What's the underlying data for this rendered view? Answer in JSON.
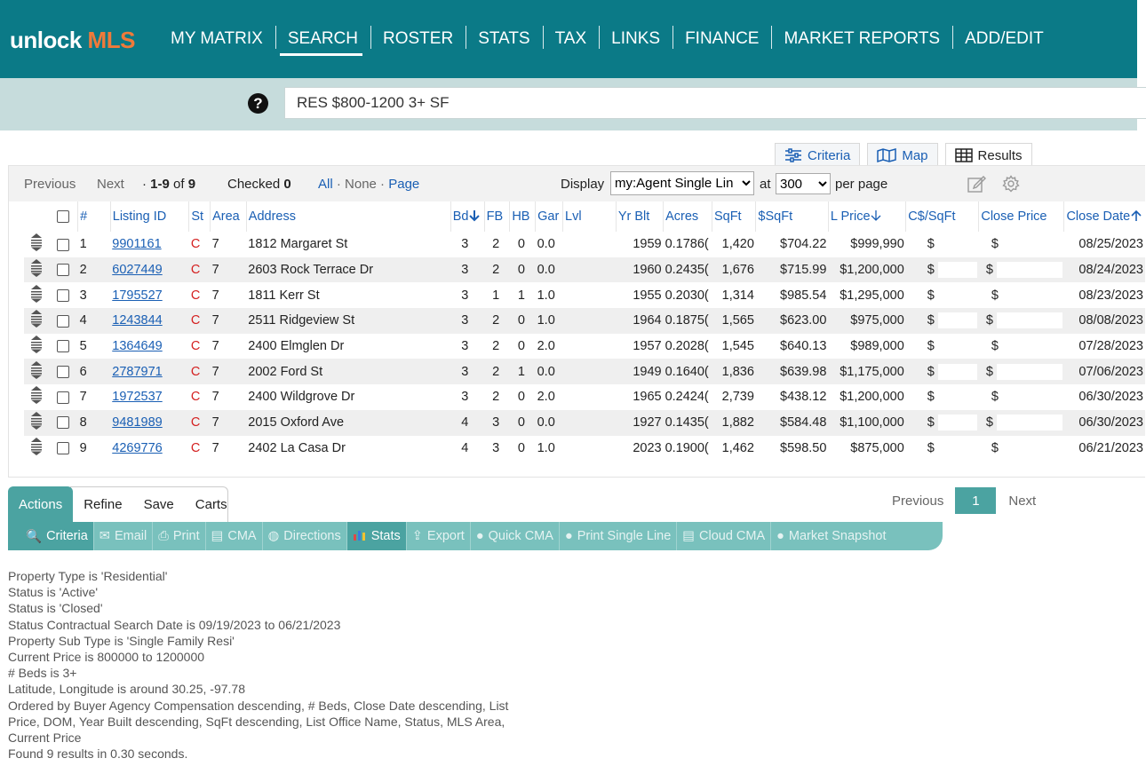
{
  "brand": {
    "part1": "unlock",
    "part2": "MLS"
  },
  "nav": [
    "MY MATRIX",
    "SEARCH",
    "ROSTER",
    "STATS",
    "TAX",
    "LINKS",
    "FINANCE",
    "MARKET REPORTS",
    "ADD/EDIT"
  ],
  "nav_active": "SEARCH",
  "search": {
    "help_glyph": "?",
    "value": "RES $800-1200 3+ SF"
  },
  "view_tabs": [
    "Criteria",
    "Map",
    "Results"
  ],
  "pager": {
    "previous": "Previous",
    "next": "Next",
    "range": "1-9",
    "of": "of",
    "total": "9",
    "checked_label": "Checked",
    "checked_count": "0",
    "all": "All",
    "none": "None",
    "page": "Page",
    "display_label": "Display",
    "display_value": "my:Agent Single Lin",
    "at_label": "at",
    "per_page_value": "300",
    "per_page_label": "per page"
  },
  "columns": [
    "#",
    "Listing ID",
    "St",
    "Area",
    "Address",
    "Bd",
    "FB",
    "HB",
    "Gar",
    "Lvl",
    "Yr Blt",
    "Acres",
    "SqFt",
    "$SqFt",
    "L Price",
    "C$/SqFt",
    "Close Price",
    "Close Date"
  ],
  "rows": [
    {
      "n": "1",
      "id": "9901161",
      "st": "C",
      "area": "7",
      "addr": "1812 Margaret St",
      "bd": "3",
      "fb": "2",
      "hb": "0",
      "gar": "0.0",
      "lvl": "",
      "yr": "1959",
      "acres": "0.1786(",
      "sqft": "1,420",
      "psf": "$704.22",
      "lp": "$999,990",
      "cpsf": "$",
      "cp": "$",
      "cd": "08/25/2023"
    },
    {
      "n": "2",
      "id": "6027449",
      "st": "C",
      "area": "7",
      "addr": "2603 Rock Terrace Dr",
      "bd": "3",
      "fb": "2",
      "hb": "0",
      "gar": "0.0",
      "lvl": "",
      "yr": "1960",
      "acres": "0.2435(",
      "sqft": "1,676",
      "psf": "$715.99",
      "lp": "$1,200,000",
      "cpsf": "$",
      "cp": "$",
      "cd": "08/24/2023"
    },
    {
      "n": "3",
      "id": "1795527",
      "st": "C",
      "area": "7",
      "addr": "1811 Kerr St",
      "bd": "3",
      "fb": "1",
      "hb": "1",
      "gar": "1.0",
      "lvl": "",
      "yr": "1955",
      "acres": "0.2030(",
      "sqft": "1,314",
      "psf": "$985.54",
      "lp": "$1,295,000",
      "cpsf": "$",
      "cp": "$",
      "cd": "08/23/2023"
    },
    {
      "n": "4",
      "id": "1243844",
      "st": "C",
      "area": "7",
      "addr": "2511 Ridgeview St",
      "bd": "3",
      "fb": "2",
      "hb": "0",
      "gar": "1.0",
      "lvl": "",
      "yr": "1964",
      "acres": "0.1875(",
      "sqft": "1,565",
      "psf": "$623.00",
      "lp": "$975,000",
      "cpsf": "$",
      "cp": "$",
      "cd": "08/08/2023"
    },
    {
      "n": "5",
      "id": "1364649",
      "st": "C",
      "area": "7",
      "addr": "2400 Elmglen Dr",
      "bd": "3",
      "fb": "2",
      "hb": "0",
      "gar": "2.0",
      "lvl": "",
      "yr": "1957",
      "acres": "0.2028(",
      "sqft": "1,545",
      "psf": "$640.13",
      "lp": "$989,000",
      "cpsf": "$",
      "cp": "$",
      "cd": "07/28/2023"
    },
    {
      "n": "6",
      "id": "2787971",
      "st": "C",
      "area": "7",
      "addr": "2002 Ford St",
      "bd": "3",
      "fb": "2",
      "hb": "1",
      "gar": "0.0",
      "lvl": "",
      "yr": "1949",
      "acres": "0.1640(",
      "sqft": "1,836",
      "psf": "$639.98",
      "lp": "$1,175,000",
      "cpsf": "$",
      "cp": "$",
      "cd": "07/06/2023"
    },
    {
      "n": "7",
      "id": "1972537",
      "st": "C",
      "area": "7",
      "addr": "2400 Wildgrove Dr",
      "bd": "3",
      "fb": "2",
      "hb": "0",
      "gar": "2.0",
      "lvl": "",
      "yr": "1965",
      "acres": "0.2424(",
      "sqft": "2,739",
      "psf": "$438.12",
      "lp": "$1,200,000",
      "cpsf": "$",
      "cp": "$",
      "cd": "06/30/2023"
    },
    {
      "n": "8",
      "id": "9481989",
      "st": "C",
      "area": "7",
      "addr": "2015 Oxford Ave",
      "bd": "4",
      "fb": "3",
      "hb": "0",
      "gar": "0.0",
      "lvl": "",
      "yr": "1927",
      "acres": "0.1435(",
      "sqft": "1,882",
      "psf": "$584.48",
      "lp": "$1,100,000",
      "cpsf": "$",
      "cp": "$",
      "cd": "06/30/2023"
    },
    {
      "n": "9",
      "id": "4269776",
      "st": "C",
      "area": "7",
      "addr": "2402 La Casa Dr",
      "bd": "4",
      "fb": "3",
      "hb": "0",
      "gar": "1.0",
      "lvl": "",
      "yr": "2023",
      "acres": "0.1900(",
      "sqft": "1,462",
      "psf": "$598.50",
      "lp": "$875,000",
      "cpsf": "$",
      "cp": "$",
      "cd": "06/21/2023"
    }
  ],
  "bottom_tabs": [
    "Actions",
    "Refine",
    "Save",
    "Carts"
  ],
  "bottom_pager": {
    "previous": "Previous",
    "page": "1",
    "next": "Next"
  },
  "actions": [
    "Criteria",
    "Email",
    "Print",
    "CMA",
    "Directions",
    "Stats",
    "Export",
    "Quick CMA",
    "Print Single Line",
    "Cloud CMA",
    "Market Snapshot"
  ],
  "criteria_lines": [
    "Property Type is 'Residential'",
    "Status is 'Active'",
    "Status is 'Closed'",
    "Status Contractual Search Date is 09/19/2023 to 06/21/2023",
    "Property Sub Type is 'Single Family Resi'",
    "Current Price is 800000 to 1200000",
    "# Beds is 3+",
    "Latitude, Longitude is around 30.25, -97.78",
    "Ordered by Buyer Agency Compensation descending, # Beds, Close Date descending, List",
    "Price, DOM, Year Built descending, SqFt descending, List Office Name, Status, MLS Area,",
    "Current Price",
    "Found 9 results in 0.30 seconds."
  ],
  "colors": {
    "header": "#0b7a87",
    "logo_accent": "#f07a3a",
    "search_band": "#c6dcdc",
    "teal_active": "#4ba3a1",
    "teal_bar": "#79c1bd",
    "link": "#1a5fb4",
    "status_closed": "#d42020"
  }
}
